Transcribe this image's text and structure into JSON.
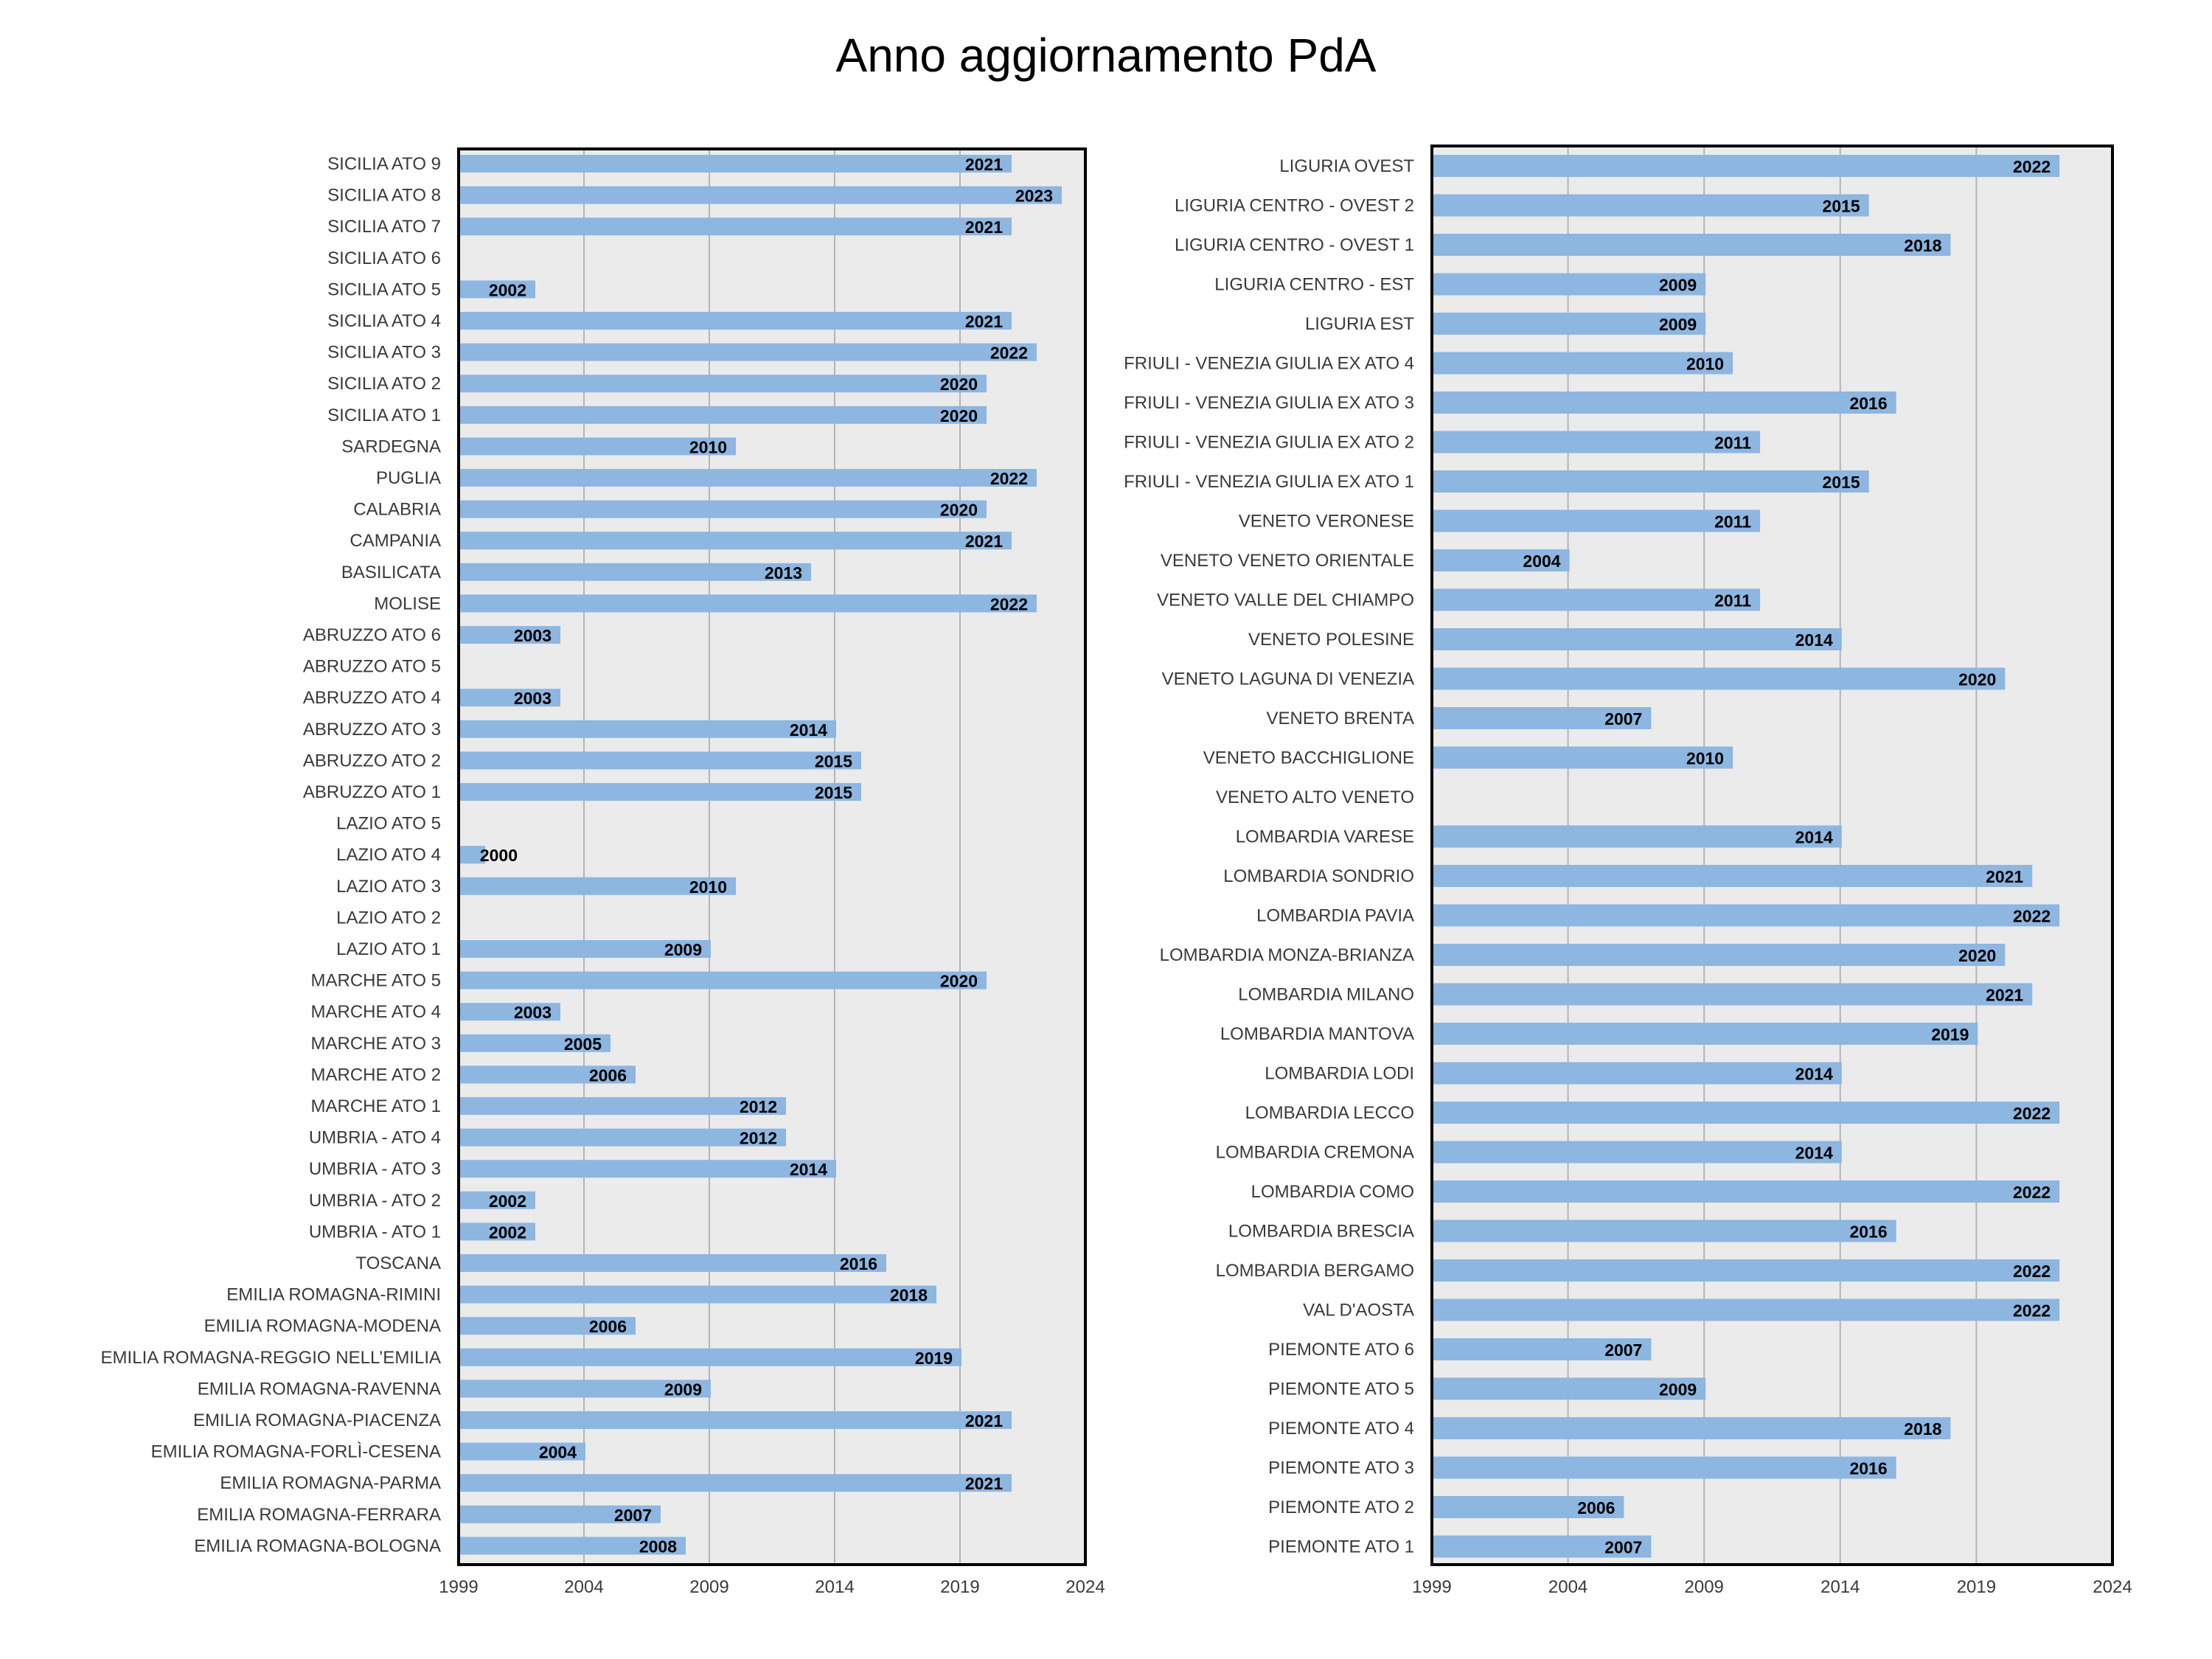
{
  "title": "Anno aggiornamento PdA",
  "chart_data": [
    {
      "type": "bar",
      "orientation": "horizontal",
      "xlim": [
        1999,
        2024
      ],
      "x_ticks": [
        1999,
        2004,
        2009,
        2014,
        2019,
        2024
      ],
      "grid": true,
      "data_labels": true,
      "categories": [
        "SICILIA ATO 9",
        "SICILIA ATO 8",
        "SICILIA ATO 7",
        "SICILIA ATO 6",
        "SICILIA ATO 5",
        "SICILIA ATO 4",
        "SICILIA ATO 3",
        "SICILIA ATO 2",
        "SICILIA ATO 1",
        "SARDEGNA",
        "PUGLIA",
        "CALABRIA",
        "CAMPANIA",
        "BASILICATA",
        "MOLISE",
        "ABRUZZO ATO 6",
        "ABRUZZO ATO 5",
        "ABRUZZO ATO 4",
        "ABRUZZO ATO 3",
        "ABRUZZO ATO 2",
        "ABRUZZO ATO 1",
        "LAZIO ATO 5",
        "LAZIO ATO 4",
        "LAZIO ATO 3",
        "LAZIO ATO 2",
        "LAZIO ATO 1",
        "MARCHE ATO 5",
        "MARCHE ATO 4",
        "MARCHE ATO 3",
        "MARCHE ATO 2",
        "MARCHE ATO 1",
        "UMBRIA - ATO 4",
        "UMBRIA - ATO 3",
        "UMBRIA - ATO 2",
        "UMBRIA - ATO 1",
        "TOSCANA",
        "EMILIA ROMAGNA-RIMINI",
        "EMILIA ROMAGNA-MODENA",
        "EMILIA ROMAGNA-REGGIO NELL’EMILIA",
        "EMILIA ROMAGNA-RAVENNA",
        "EMILIA ROMAGNA-PIACENZA",
        "EMILIA ROMAGNA-FORLÌ-CESENA",
        "EMILIA ROMAGNA-PARMA",
        "EMILIA ROMAGNA-FERRARA",
        "EMILIA ROMAGNA-BOLOGNA"
      ],
      "values": [
        2021,
        2023,
        2021,
        null,
        2002,
        2021,
        2022,
        2020,
        2020,
        2010,
        2022,
        2020,
        2021,
        2013,
        2022,
        2003,
        null,
        2003,
        2014,
        2015,
        2015,
        null,
        2000,
        2010,
        null,
        2009,
        2020,
        2003,
        2005,
        2006,
        2012,
        2012,
        2014,
        2002,
        2002,
        2016,
        2018,
        2006,
        2019,
        2009,
        2021,
        2004,
        2021,
        2007,
        2008
      ]
    },
    {
      "type": "bar",
      "orientation": "horizontal",
      "xlim": [
        1999,
        2024
      ],
      "x_ticks": [
        1999,
        2004,
        2009,
        2014,
        2019,
        2024
      ],
      "grid": true,
      "data_labels": true,
      "categories": [
        "LIGURIA OVEST",
        "LIGURIA CENTRO - OVEST 2",
        "LIGURIA CENTRO - OVEST 1",
        "LIGURIA CENTRO - EST",
        "LIGURIA EST",
        "FRIULI - VENEZIA GIULIA EX ATO 4",
        "FRIULI - VENEZIA GIULIA EX ATO 3",
        "FRIULI - VENEZIA GIULIA EX ATO 2",
        "FRIULI - VENEZIA GIULIA EX ATO 1",
        "VENETO VERONESE",
        "VENETO VENETO ORIENTALE",
        "VENETO VALLE DEL CHIAMPO",
        "VENETO POLESINE",
        "VENETO LAGUNA DI VENEZIA",
        "VENETO BRENTA",
        "VENETO BACCHIGLIONE",
        "VENETO ALTO VENETO",
        "LOMBARDIA VARESE",
        "LOMBARDIA SONDRIO",
        "LOMBARDIA PAVIA",
        "LOMBARDIA MONZA-BRIANZA",
        "LOMBARDIA MILANO",
        "LOMBARDIA MANTOVA",
        "LOMBARDIA LODI",
        "LOMBARDIA LECCO",
        "LOMBARDIA CREMONA",
        "LOMBARDIA COMO",
        "LOMBARDIA BRESCIA",
        "LOMBARDIA BERGAMO",
        "VAL D'AOSTA",
        "PIEMONTE ATO 6",
        "PIEMONTE ATO 5",
        "PIEMONTE ATO 4",
        "PIEMONTE ATO 3",
        "PIEMONTE ATO 2",
        "PIEMONTE ATO 1"
      ],
      "values": [
        2022,
        2015,
        2018,
        2009,
        2009,
        2010,
        2016,
        2011,
        2015,
        2011,
        2004,
        2011,
        2014,
        2020,
        2007,
        2010,
        null,
        2014,
        2021,
        2022,
        2020,
        2021,
        2019,
        2014,
        2022,
        2014,
        2022,
        2016,
        2022,
        2022,
        2007,
        2009,
        2018,
        2016,
        2006,
        2007
      ]
    }
  ]
}
